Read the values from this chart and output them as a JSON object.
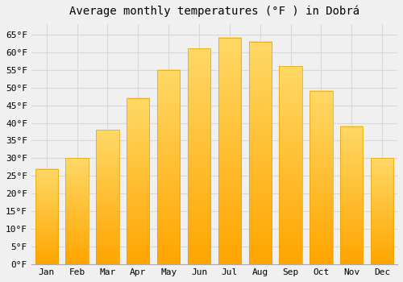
{
  "title": "Average monthly temperatures (°F ) in Dobrá",
  "months": [
    "Jan",
    "Feb",
    "Mar",
    "Apr",
    "May",
    "Jun",
    "Jul",
    "Aug",
    "Sep",
    "Oct",
    "Nov",
    "Dec"
  ],
  "values": [
    27,
    30,
    38,
    47,
    55,
    61,
    64,
    63,
    56,
    49,
    39,
    30
  ],
  "bar_color_bottom": "#FFA500",
  "bar_color_top": "#FFD966",
  "bar_edge_color": "#E8A000",
  "ylim": [
    0,
    68
  ],
  "yticks": [
    0,
    5,
    10,
    15,
    20,
    25,
    30,
    35,
    40,
    45,
    50,
    55,
    60,
    65
  ],
  "background_color": "#f0f0f0",
  "grid_color": "#d8d8d8",
  "title_fontsize": 10,
  "tick_fontsize": 8,
  "font_family": "monospace"
}
